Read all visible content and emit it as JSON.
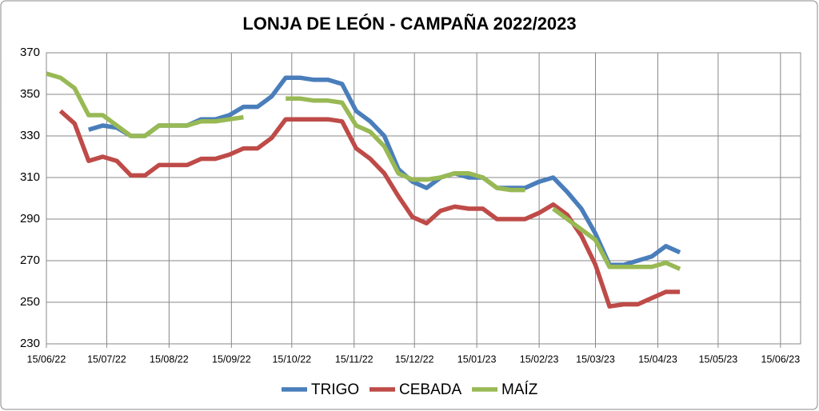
{
  "chart_data": {
    "type": "line",
    "title": "LONJA DE LEÓN - CAMPAÑA 2022/2023",
    "x": [
      "15/06/22",
      "22/06/22",
      "29/06/22",
      "06/07/22",
      "13/07/22",
      "20/07/22",
      "27/07/22",
      "03/08/22",
      "10/08/22",
      "17/08/22",
      "24/08/22",
      "31/08/22",
      "07/09/22",
      "14/09/22",
      "21/09/22",
      "28/09/22",
      "05/10/22",
      "12/10/22",
      "19/10/22",
      "26/10/22",
      "02/11/22",
      "09/11/22",
      "16/11/22",
      "23/11/22",
      "30/11/22",
      "07/12/22",
      "14/12/22",
      "21/12/22",
      "28/12/22",
      "04/01/23",
      "11/01/23",
      "18/01/23",
      "25/01/23",
      "01/02/23",
      "08/02/23",
      "15/02/23",
      "22/02/23",
      "01/03/23",
      "08/03/23",
      "15/03/23",
      "22/03/23",
      "29/03/23",
      "05/04/23",
      "12/04/23",
      "19/04/23",
      "26/04/23"
    ],
    "series": [
      {
        "name": "TRIGO",
        "color": "#4a7ebb",
        "values": [
          null,
          null,
          null,
          333,
          335,
          334,
          330,
          330,
          335,
          335,
          335,
          338,
          338,
          340,
          344,
          344,
          349,
          358,
          358,
          357,
          357,
          355,
          342,
          337,
          330,
          314,
          308,
          305,
          310,
          312,
          310,
          310,
          305,
          305,
          305,
          308,
          310,
          303,
          295,
          283,
          268,
          268,
          270,
          272,
          277,
          274
        ]
      },
      {
        "name": "CEBADA",
        "color": "#be4b48",
        "values": [
          null,
          342,
          336,
          318,
          320,
          318,
          311,
          311,
          316,
          316,
          316,
          319,
          319,
          321,
          324,
          324,
          329,
          338,
          338,
          338,
          338,
          337,
          324,
          319,
          312,
          301,
          291,
          288,
          294,
          296,
          295,
          295,
          290,
          290,
          290,
          293,
          297,
          292,
          282,
          268,
          248,
          249,
          249,
          252,
          255,
          255
        ]
      },
      {
        "name": "MAÍZ",
        "color": "#98b954",
        "values": [
          360,
          358,
          353,
          340,
          340,
          335,
          330,
          330,
          335,
          335,
          335,
          337,
          337,
          338,
          339,
          null,
          null,
          348,
          348,
          347,
          347,
          346,
          335,
          332,
          325,
          312,
          309,
          309,
          310,
          312,
          312,
          310,
          305,
          304,
          304,
          null,
          295,
          290,
          285,
          280,
          267,
          267,
          267,
          267,
          269,
          266
        ]
      }
    ],
    "xlim": [
      "15/06/22",
      "25/06/23"
    ],
    "xticks": [
      "15/06/22",
      "15/07/22",
      "15/08/22",
      "15/09/22",
      "15/10/22",
      "15/11/22",
      "15/12/22",
      "15/01/23",
      "15/02/23",
      "15/03/23",
      "15/04/23",
      "15/05/23",
      "15/06/23"
    ],
    "ylim": [
      230,
      370
    ],
    "yticks": [
      230,
      250,
      270,
      290,
      310,
      330,
      350,
      370
    ],
    "grid": true,
    "legend": "bottom"
  }
}
